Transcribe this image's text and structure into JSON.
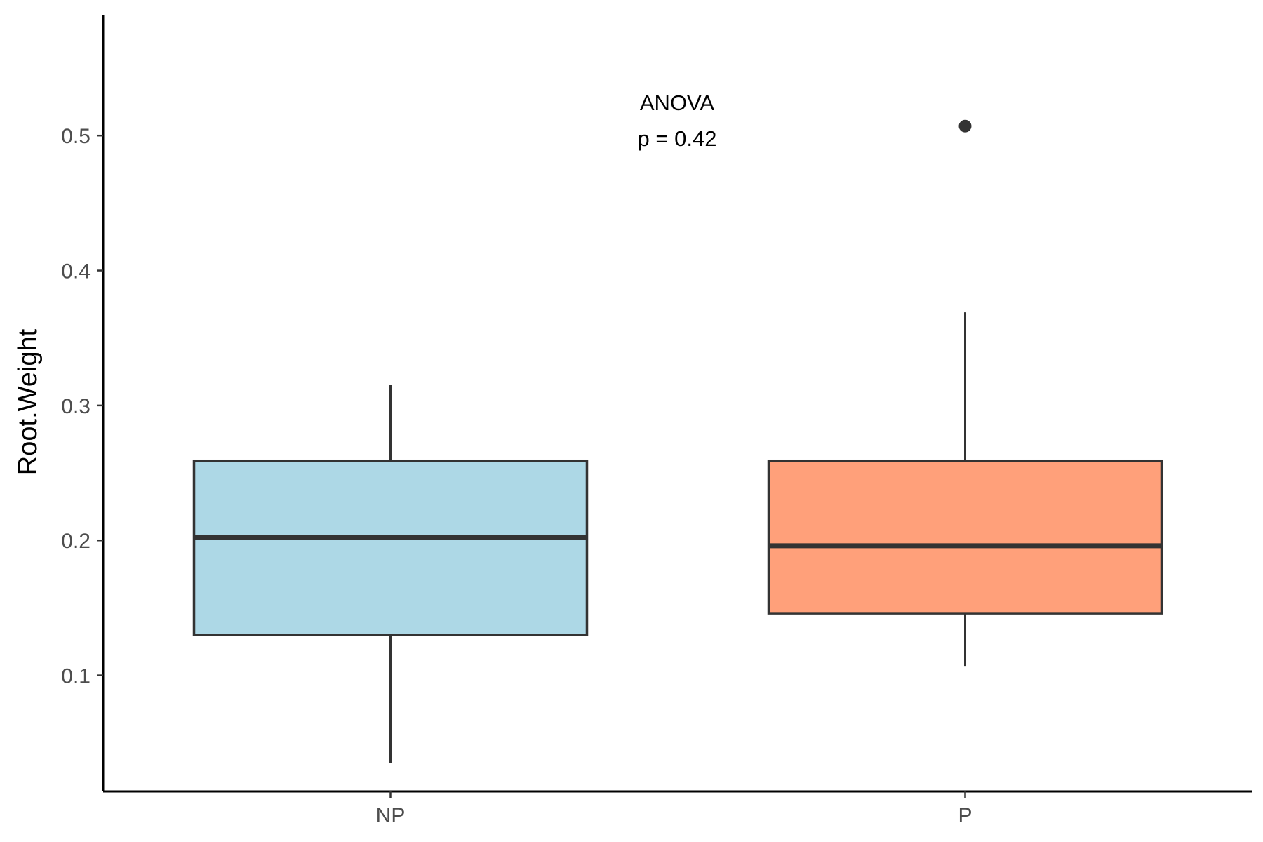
{
  "chart_data": {
    "type": "boxplot",
    "xlabel": "",
    "ylabel": "Root.Weight",
    "ylim": [
      0.014,
      0.589
    ],
    "yticks": [
      0.1,
      0.2,
      0.3,
      0.4,
      0.5
    ],
    "ytick_labels": [
      "0.1",
      "0.2",
      "0.3",
      "0.4",
      "0.5"
    ],
    "categories": [
      "NP",
      "P"
    ],
    "series": [
      {
        "category": "NP",
        "fill": "#add8e6",
        "whisker_low": 0.035,
        "q1": 0.13,
        "median": 0.202,
        "q3": 0.259,
        "whisker_high": 0.315,
        "outliers": []
      },
      {
        "category": "P",
        "fill": "#ffa07a",
        "whisker_low": 0.107,
        "q1": 0.146,
        "median": 0.196,
        "q3": 0.259,
        "whisker_high": 0.369,
        "outliers": [
          0.507
        ]
      }
    ],
    "annotation": {
      "line1": "ANOVA",
      "line2": "p = 0.42"
    },
    "grid": false,
    "legend": "none"
  },
  "colors": {
    "box_outline": "#333333",
    "axis": "#000000"
  }
}
